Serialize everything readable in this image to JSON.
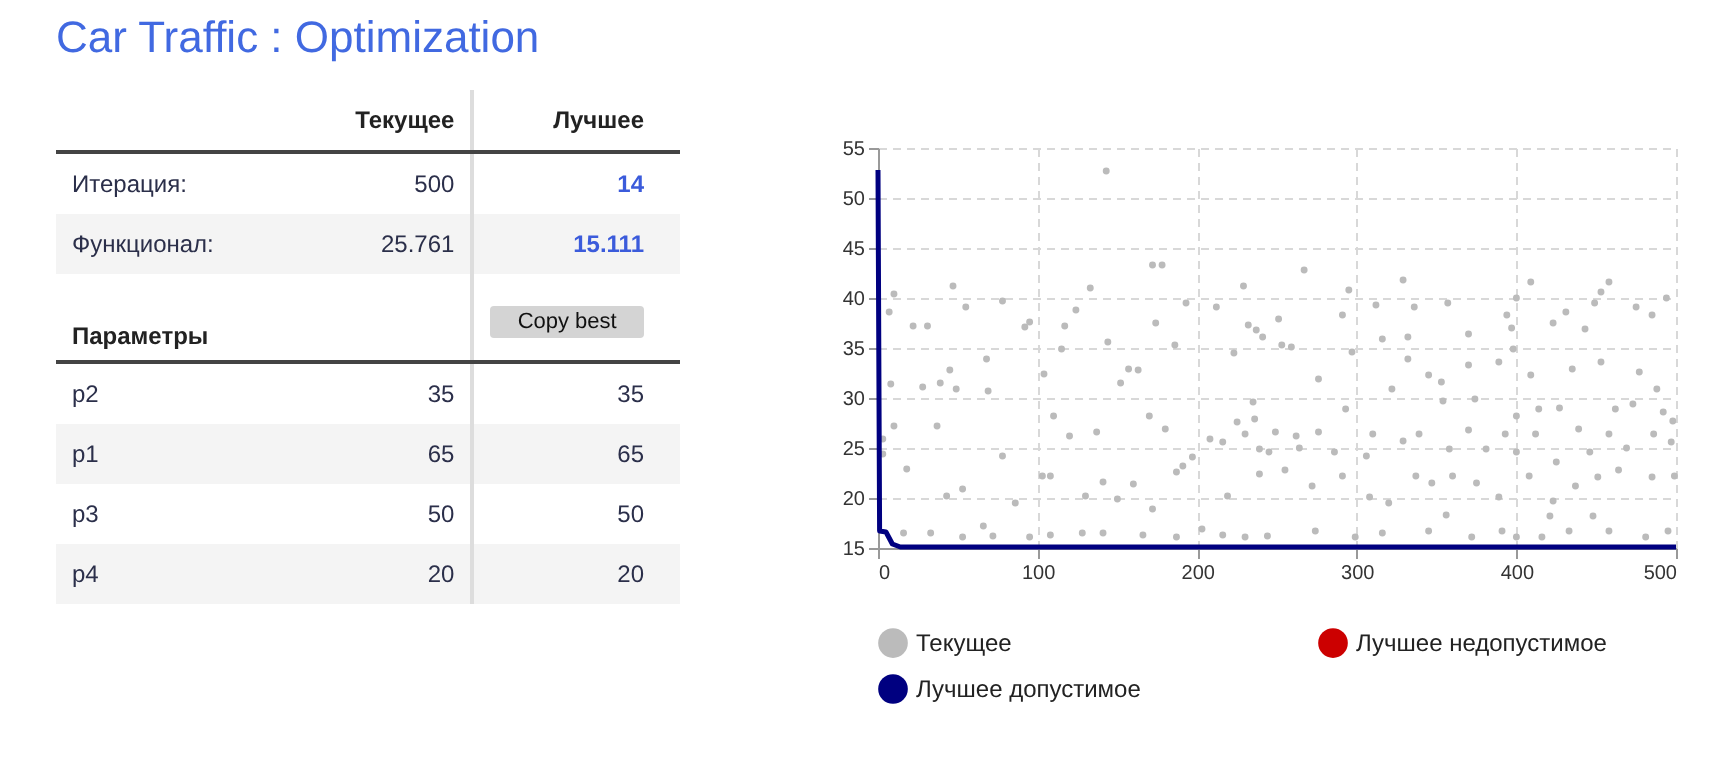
{
  "chart_data": [
    {
      "type": "other",
      "title": "Car Traffic : Optimization",
      "data_labels": true,
      "categories": [
        "Текущее",
        "Лучшее"
      ],
      "y_categories": [
        "Итерация:",
        "Функционал:",
        "Параметры",
        "p2",
        "p1",
        "p3",
        "p4"
      ],
      "cell_labels": [
        [
          "500",
          "14"
        ],
        [
          "25.761",
          "15.111"
        ],
        [
          null,
          null
        ],
        [
          "35",
          "35"
        ],
        [
          "65",
          "65"
        ],
        [
          "50",
          "50"
        ],
        [
          "20",
          "20"
        ]
      ],
      "annotations": [
        "Copy best"
      ]
    },
    {
      "type": "scatter",
      "xlim": [
        0,
        500
      ],
      "ylim": [
        15,
        55
      ],
      "xticks": [
        0,
        100,
        200,
        300,
        400,
        500
      ],
      "yticks": [
        15,
        20,
        25,
        30,
        35,
        40,
        45,
        50,
        55
      ],
      "grid": true,
      "legend": "bottom",
      "series": [
        {
          "name": "Текущее",
          "type": "scatter",
          "color": "#bbbbbb",
          "marker": "circle",
          "x": [
            7,
            10,
            8,
            10,
            3,
            3,
            22,
            31,
            47,
            55,
            78,
            92,
            68,
            45,
            39,
            28,
            49,
            69,
            95,
            104,
            115,
            117,
            124,
            133,
            143,
            144,
            152,
            157,
            163,
            172,
            178,
            174,
            186,
            193,
            212,
            223,
            229,
            232,
            237,
            37,
            18,
            43,
            53,
            66,
            78,
            86,
            103,
            108,
            110,
            120,
            130,
            137,
            141,
            150,
            160,
            170,
            172,
            180,
            187,
            191,
            197,
            208,
            216,
            219,
            225,
            230,
            235,
            239,
            16,
            33,
            53,
            72,
            95,
            108,
            128,
            141,
            166,
            187,
            203,
            216,
            230,
            267,
            295,
            329,
            312,
            336,
            291,
            357,
            251,
            241,
            253,
            259,
            316,
            332,
            370,
            394,
            400,
            397,
            409,
            423,
            431,
            443,
            449,
            458,
            453,
            475,
            485,
            494,
            297,
            332,
            322,
            276,
            345,
            353,
            370,
            389,
            398,
            409,
            435,
            453,
            477,
            488,
            354,
            374,
            400,
            414,
            427,
            462,
            473,
            492,
            498,
            236,
            249,
            262,
            276,
            293,
            310,
            339,
            370,
            393,
            412,
            439,
            458,
            486,
            245,
            264,
            286,
            306,
            329,
            358,
            381,
            400,
            425,
            446,
            469,
            497,
            239,
            255,
            272,
            291,
            308,
            320,
            337,
            347,
            360,
            375,
            389,
            408,
            423,
            437,
            451,
            464,
            485,
            499,
            356,
            421,
            448,
            244,
            274,
            299,
            316,
            345,
            372,
            391,
            400,
            416,
            433,
            458,
            481,
            495
          ],
          "values": [
            38.6,
            40.4,
            31.4,
            27.2,
            25.9,
            24.4,
            37.2,
            37.2,
            41.2,
            39.1,
            39.7,
            37.1,
            33.9,
            32.8,
            31.5,
            31.1,
            30.9,
            30.7,
            37.6,
            32.4,
            34.9,
            37.2,
            38.8,
            41,
            52.7,
            35.6,
            31.5,
            32.9,
            32.8,
            43.3,
            43.3,
            37.5,
            35.3,
            39.5,
            39.1,
            34.5,
            41.2,
            37.3,
            36.8,
            27.2,
            22.9,
            20.2,
            20.9,
            17.2,
            24.2,
            19.5,
            22.2,
            22.2,
            28.2,
            26.2,
            20.2,
            26.6,
            21.6,
            19.9,
            21.4,
            28.2,
            18.9,
            26.9,
            22.6,
            23.2,
            24.1,
            25.9,
            25.6,
            20.2,
            27.6,
            26.4,
            29.6,
            24.9,
            16.5,
            16.5,
            16.1,
            16.2,
            16.1,
            16.3,
            16.5,
            16.5,
            16.3,
            16.1,
            16.9,
            16.3,
            16.1,
            42.8,
            40.8,
            41.8,
            39.3,
            39.1,
            38.3,
            39.5,
            37.9,
            36.1,
            35.3,
            35.1,
            35.9,
            36.1,
            36.4,
            38.3,
            40,
            37,
            41.6,
            37.5,
            38.6,
            36.9,
            39.5,
            41.6,
            40.6,
            39.1,
            38.3,
            40,
            34.6,
            33.9,
            30.9,
            31.9,
            32.3,
            31.6,
            33.3,
            33.6,
            34.9,
            32.3,
            32.9,
            33.6,
            32.6,
            30.9,
            29.7,
            29.9,
            28.2,
            28.9,
            29,
            28.9,
            29.4,
            28.6,
            27.7,
            27.9,
            26.6,
            26.2,
            26.6,
            28.9,
            26.4,
            26.4,
            26.8,
            26.4,
            26.4,
            26.9,
            26.4,
            26.4,
            24.6,
            25,
            24.6,
            24.2,
            25.7,
            24.9,
            24.9,
            24.6,
            23.6,
            24.6,
            25,
            25.6,
            22.4,
            22.8,
            21.2,
            22.2,
            20.1,
            19.5,
            22.2,
            21.5,
            22.2,
            21.5,
            20.1,
            22.2,
            19.7,
            21.2,
            22.1,
            22.8,
            22.1,
            22.2,
            18.3,
            18.2,
            18.2,
            16.2,
            16.7,
            16.1,
            16.5,
            16.7,
            16.1,
            16.7,
            16.1,
            16.1,
            16.7,
            16.7,
            16.1,
            16.7
          ]
        },
        {
          "name": "Лучшее недопустимое",
          "type": "scatter",
          "color": "#cc0000",
          "marker": "circle"
        },
        {
          "name": "Лучшее допустимое",
          "type": "line",
          "color": "#000080",
          "marker": "none",
          "x": [
            0,
            1,
            5,
            7,
            9,
            14,
            500
          ],
          "values": [
            52.8,
            16.7,
            16.6,
            16,
            15.4,
            15.1,
            15.1
          ]
        }
      ]
    }
  ]
}
